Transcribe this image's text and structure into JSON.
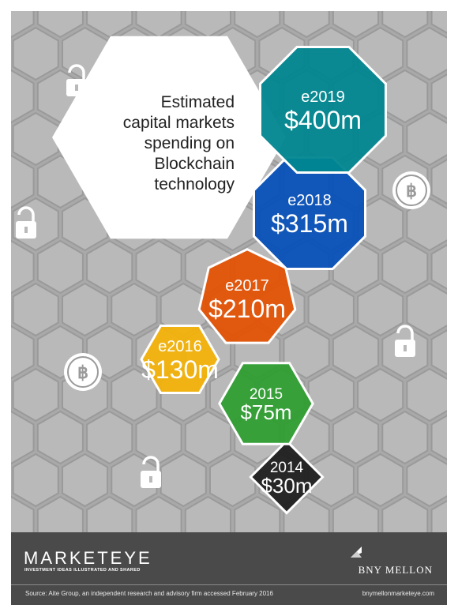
{
  "chart_data": {
    "type": "bar",
    "title_lines": [
      "Estimated",
      "capital markets",
      "spending on",
      "Blockchain",
      "technology"
    ],
    "categories": [
      "2014",
      "2015",
      "e2016",
      "e2017",
      "e2018",
      "e2019"
    ],
    "values": [
      30,
      75,
      130,
      210,
      315,
      400
    ],
    "value_labels": [
      "$30m",
      "$75m",
      "$130m",
      "$210m",
      "$315m",
      "$400m"
    ],
    "colors": [
      "#1f1f1f",
      "#2f9e32",
      "#f2b20a",
      "#e35205",
      "#0750b8",
      "#00868f"
    ],
    "unit": "$m"
  },
  "background": {
    "color": "#a9a9a9",
    "hex_color": "#b9b9b9",
    "hex_stroke": "#9a9a9a",
    "icons": [
      {
        "kind": "lock-icon"
      },
      {
        "kind": "lock-icon"
      },
      {
        "kind": "bitcoin-icon"
      },
      {
        "kind": "bitcoin-icon"
      },
      {
        "kind": "lock-icon"
      },
      {
        "kind": "lock-icon"
      }
    ]
  },
  "footer": {
    "brand": "MARKETEYE",
    "tagline": "INVESTMENT IDEAS ILLUSTRATED AND SHARED",
    "bank": "BNY MELLON",
    "source": "Source: Aite Group, an independent research and advisory firm accessed February 2016",
    "website": "bnymellonmarketeye.com"
  }
}
